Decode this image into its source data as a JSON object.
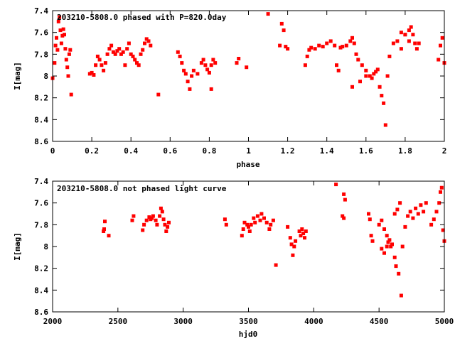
{
  "chart_data": [
    {
      "type": "scatter",
      "title": "203210-5808.0 phased with P=820.0day",
      "xlabel": "phase",
      "ylabel": "I[mag]",
      "xlim": [
        0,
        2
      ],
      "ylim": [
        8.6,
        7.4
      ],
      "y_inverted": true,
      "xticks": [
        "0",
        "0.2",
        "0.4",
        "0.6",
        "0.8",
        "1",
        "1.2",
        "1.4",
        "1.6",
        "1.8",
        "2"
      ],
      "yticks": [
        "7.4",
        "7.6",
        "7.8",
        "8",
        "8.2",
        "8.4",
        "8.6"
      ],
      "grid": false,
      "marker_color": "#ff0000",
      "series": [
        {
          "points": [
            [
              0.0,
              8.02
            ],
            [
              0.01,
              7.88
            ],
            [
              0.015,
              7.72
            ],
            [
              0.02,
              7.65
            ],
            [
              0.025,
              7.76
            ],
            [
              0.03,
              7.5
            ],
            [
              0.035,
              7.46
            ],
            [
              0.04,
              7.58
            ],
            [
              0.045,
              7.7
            ],
            [
              0.05,
              7.63
            ],
            [
              0.055,
              7.57
            ],
            [
              0.06,
              7.62
            ],
            [
              0.065,
              7.75
            ],
            [
              0.07,
              7.85
            ],
            [
              0.075,
              7.92
            ],
            [
              0.08,
              8.0
            ],
            [
              0.085,
              7.8
            ],
            [
              0.09,
              7.76
            ],
            [
              0.095,
              8.17
            ],
            [
              0.19,
              7.98
            ],
            [
              0.2,
              7.97
            ],
            [
              0.21,
              7.99
            ],
            [
              0.22,
              7.9
            ],
            [
              0.23,
              7.82
            ],
            [
              0.24,
              7.85
            ],
            [
              0.25,
              7.9
            ],
            [
              0.26,
              7.95
            ],
            [
              0.27,
              7.88
            ],
            [
              0.28,
              7.8
            ],
            [
              0.29,
              7.75
            ],
            [
              0.3,
              7.72
            ],
            [
              0.31,
              7.78
            ],
            [
              0.32,
              7.8
            ],
            [
              0.33,
              7.77
            ],
            [
              0.34,
              7.75
            ],
            [
              0.35,
              7.8
            ],
            [
              0.36,
              7.78
            ],
            [
              0.37,
              7.9
            ],
            [
              0.38,
              7.75
            ],
            [
              0.39,
              7.7
            ],
            [
              0.4,
              7.8
            ],
            [
              0.41,
              7.82
            ],
            [
              0.42,
              7.85
            ],
            [
              0.43,
              7.88
            ],
            [
              0.44,
              7.9
            ],
            [
              0.45,
              7.8
            ],
            [
              0.46,
              7.76
            ],
            [
              0.47,
              7.7
            ],
            [
              0.48,
              7.66
            ],
            [
              0.49,
              7.68
            ],
            [
              0.5,
              7.72
            ],
            [
              0.54,
              8.17
            ],
            [
              0.64,
              7.78
            ],
            [
              0.65,
              7.82
            ],
            [
              0.66,
              7.88
            ],
            [
              0.67,
              7.95
            ],
            [
              0.68,
              7.98
            ],
            [
              0.69,
              8.05
            ],
            [
              0.7,
              8.12
            ],
            [
              0.71,
              8.0
            ],
            [
              0.72,
              7.95
            ],
            [
              0.74,
              7.98
            ],
            [
              0.76,
              7.88
            ],
            [
              0.77,
              7.85
            ],
            [
              0.78,
              7.9
            ],
            [
              0.79,
              7.94
            ],
            [
              0.8,
              7.97
            ],
            [
              0.81,
              7.9
            ],
            [
              0.82,
              7.85
            ],
            [
              0.83,
              7.88
            ],
            [
              0.81,
              8.12
            ],
            [
              0.94,
              7.88
            ],
            [
              0.95,
              7.84
            ],
            [
              0.99,
              7.92
            ],
            [
              1.1,
              7.43
            ],
            [
              1.16,
              7.72
            ],
            [
              1.17,
              7.52
            ],
            [
              1.18,
              7.58
            ],
            [
              1.19,
              7.73
            ],
            [
              1.2,
              7.75
            ],
            [
              1.29,
              7.9
            ],
            [
              1.3,
              7.82
            ],
            [
              1.31,
              7.76
            ],
            [
              1.32,
              7.74
            ],
            [
              1.34,
              7.75
            ],
            [
              1.36,
              7.72
            ],
            [
              1.38,
              7.73
            ],
            [
              1.4,
              7.7
            ],
            [
              1.42,
              7.68
            ],
            [
              1.44,
              7.72
            ],
            [
              1.45,
              7.9
            ],
            [
              1.46,
              7.95
            ],
            [
              1.47,
              7.74
            ],
            [
              1.48,
              7.73
            ],
            [
              1.5,
              7.72
            ],
            [
              1.52,
              7.68
            ],
            [
              1.53,
              7.65
            ],
            [
              1.54,
              7.7
            ],
            [
              1.55,
              7.8
            ],
            [
              1.56,
              7.85
            ],
            [
              1.58,
              7.9
            ],
            [
              1.6,
              7.95
            ],
            [
              1.62,
              8.0
            ],
            [
              1.63,
              8.02
            ],
            [
              1.64,
              7.98
            ],
            [
              1.66,
              7.94
            ],
            [
              1.53,
              8.1
            ],
            [
              1.57,
              8.05
            ],
            [
              1.6,
              8.0
            ],
            [
              1.65,
              7.96
            ],
            [
              1.67,
              8.1
            ],
            [
              1.68,
              8.18
            ],
            [
              1.69,
              8.25
            ],
            [
              1.7,
              8.45
            ],
            [
              1.71,
              8.0
            ],
            [
              1.72,
              7.82
            ],
            [
              1.74,
              7.7
            ],
            [
              1.76,
              7.68
            ],
            [
              1.78,
              7.75
            ],
            [
              1.8,
              7.62
            ],
            [
              1.82,
              7.68
            ],
            [
              1.84,
              7.62
            ],
            [
              1.85,
              7.7
            ],
            [
              1.86,
              7.75
            ],
            [
              1.87,
              7.7
            ],
            [
              1.78,
              7.6
            ],
            [
              1.8,
              7.62
            ],
            [
              1.82,
              7.58
            ],
            [
              1.83,
              7.55
            ],
            [
              1.97,
              7.85
            ],
            [
              1.98,
              7.72
            ],
            [
              1.99,
              7.65
            ],
            [
              2.0,
              7.88
            ]
          ]
        }
      ]
    },
    {
      "type": "scatter",
      "title": "203210-5808.0 not phased light curve",
      "xlabel": "hjd0",
      "ylabel": "I[mag]",
      "xlim": [
        2000,
        5000
      ],
      "ylim": [
        8.6,
        7.4
      ],
      "y_inverted": true,
      "xticks": [
        "2000",
        "2500",
        "3000",
        "3500",
        "4000",
        "4500",
        "5000"
      ],
      "yticks": [
        "7.4",
        "7.6",
        "7.8",
        "8",
        "8.2",
        "8.4",
        "8.6"
      ],
      "grid": false,
      "marker_color": "#ff0000",
      "series": [
        {
          "points": [
            [
              2390,
              7.86
            ],
            [
              2395,
              7.84
            ],
            [
              2400,
              7.77
            ],
            [
              2430,
              7.9
            ],
            [
              2610,
              7.76
            ],
            [
              2620,
              7.72
            ],
            [
              2690,
              7.85
            ],
            [
              2700,
              7.8
            ],
            [
              2720,
              7.76
            ],
            [
              2740,
              7.73
            ],
            [
              2750,
              7.75
            ],
            [
              2760,
              7.74
            ],
            [
              2770,
              7.72
            ],
            [
              2790,
              7.76
            ],
            [
              2800,
              7.8
            ],
            [
              2820,
              7.72
            ],
            [
              2830,
              7.65
            ],
            [
              2840,
              7.68
            ],
            [
              2850,
              7.75
            ],
            [
              2860,
              7.8
            ],
            [
              2870,
              7.86
            ],
            [
              2880,
              7.82
            ],
            [
              2890,
              7.78
            ],
            [
              3320,
              7.75
            ],
            [
              3330,
              7.8
            ],
            [
              3450,
              7.9
            ],
            [
              3460,
              7.84
            ],
            [
              3470,
              7.78
            ],
            [
              3490,
              7.8
            ],
            [
              3500,
              7.82
            ],
            [
              3510,
              7.86
            ],
            [
              3520,
              7.8
            ],
            [
              3540,
              7.74
            ],
            [
              3550,
              7.78
            ],
            [
              3570,
              7.72
            ],
            [
              3590,
              7.76
            ],
            [
              3600,
              7.7
            ],
            [
              3620,
              7.74
            ],
            [
              3640,
              7.78
            ],
            [
              3660,
              7.84
            ],
            [
              3670,
              7.8
            ],
            [
              3690,
              7.76
            ],
            [
              3710,
              8.17
            ],
            [
              3800,
              7.82
            ],
            [
              3820,
              7.92
            ],
            [
              3830,
              7.98
            ],
            [
              3840,
              8.08
            ],
            [
              3850,
              8.0
            ],
            [
              3860,
              7.95
            ],
            [
              3890,
              7.86
            ],
            [
              3900,
              7.9
            ],
            [
              3910,
              7.84
            ],
            [
              3920,
              7.88
            ],
            [
              3930,
              7.92
            ],
            [
              3940,
              7.86
            ],
            [
              4170,
              7.43
            ],
            [
              4230,
              7.52
            ],
            [
              4240,
              7.57
            ],
            [
              4220,
              7.72
            ],
            [
              4230,
              7.74
            ],
            [
              4420,
              7.7
            ],
            [
              4430,
              7.75
            ],
            [
              4440,
              7.9
            ],
            [
              4450,
              7.95
            ],
            [
              4500,
              7.8
            ],
            [
              4520,
              7.76
            ],
            [
              4540,
              7.84
            ],
            [
              4560,
              7.9
            ],
            [
              4570,
              7.96
            ],
            [
              4590,
              8.0
            ],
            [
              4600,
              7.98
            ],
            [
              4520,
              8.02
            ],
            [
              4540,
              8.06
            ],
            [
              4560,
              8.0
            ],
            [
              4580,
              7.94
            ],
            [
              4620,
              8.1
            ],
            [
              4630,
              8.18
            ],
            [
              4650,
              8.25
            ],
            [
              4670,
              8.45
            ],
            [
              4680,
              8.0
            ],
            [
              4700,
              7.82
            ],
            [
              4720,
              7.72
            ],
            [
              4740,
              7.68
            ],
            [
              4760,
              7.74
            ],
            [
              4780,
              7.65
            ],
            [
              4800,
              7.7
            ],
            [
              4820,
              7.62
            ],
            [
              4840,
              7.68
            ],
            [
              4860,
              7.6
            ],
            [
              4620,
              7.7
            ],
            [
              4640,
              7.66
            ],
            [
              4660,
              7.6
            ],
            [
              4900,
              7.8
            ],
            [
              4920,
              7.75
            ],
            [
              4940,
              7.68
            ],
            [
              4960,
              7.6
            ],
            [
              4970,
              7.5
            ],
            [
              4980,
              7.46
            ],
            [
              4990,
              7.85
            ],
            [
              5000,
              7.95
            ]
          ]
        }
      ]
    }
  ]
}
